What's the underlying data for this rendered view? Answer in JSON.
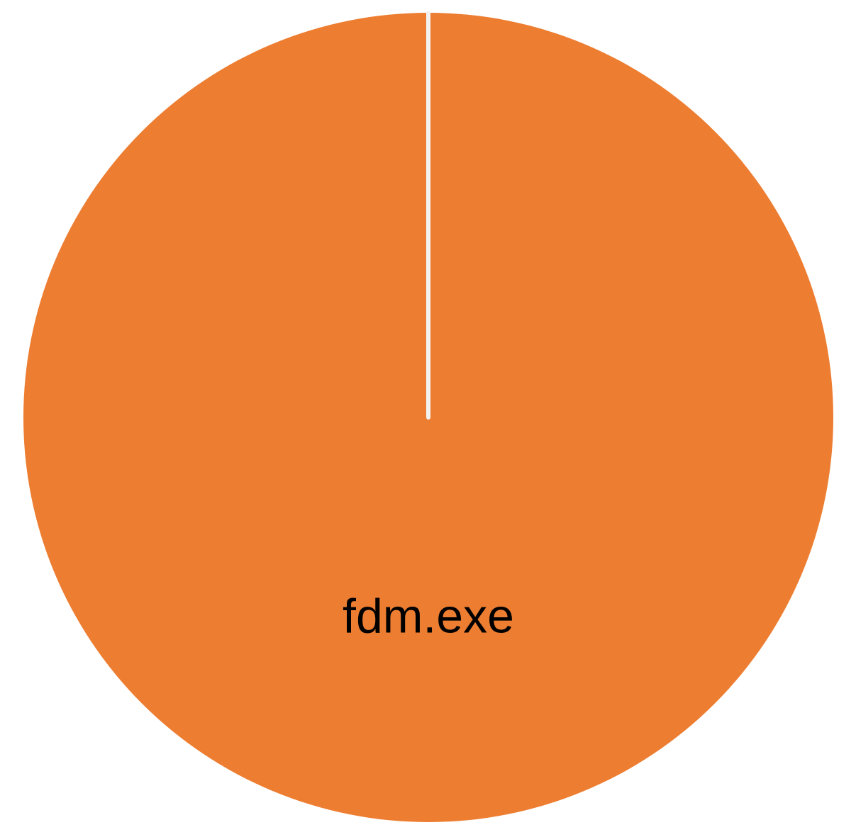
{
  "chart_data": {
    "type": "pie",
    "title": "",
    "slices": [
      {
        "label": "fdm.exe",
        "value": 100,
        "color": "#ED7D31",
        "show_label": true
      }
    ],
    "separator_color": "#F2F2F2",
    "legend": "none"
  }
}
